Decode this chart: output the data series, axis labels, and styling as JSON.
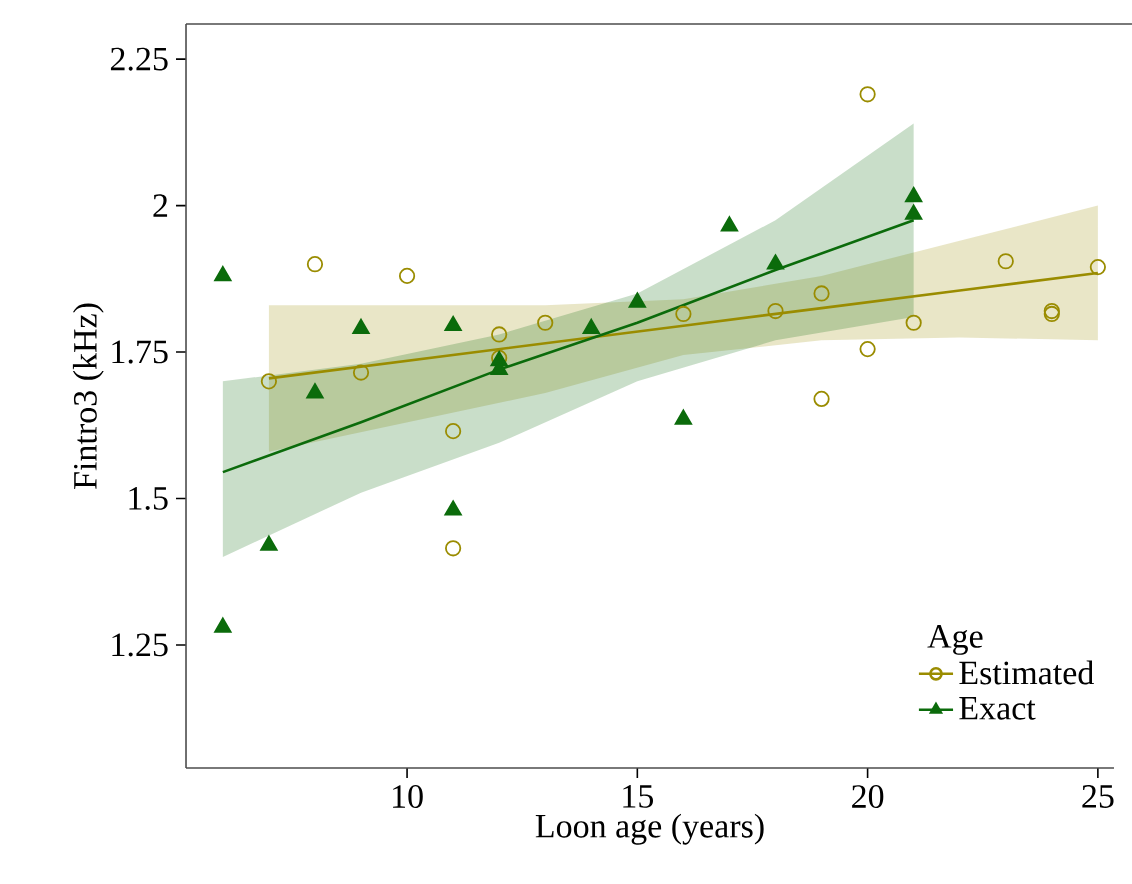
{
  "chart_data": {
    "type": "scatter",
    "xlabel": "Loon age (years)",
    "ylabel": "Fintro3 (kHz)",
    "legend_title": "Age",
    "legend": "bottom right",
    "grid": false,
    "xlim": [
      5.2,
      25.35
    ],
    "ylim": [
      1.04,
      2.31
    ],
    "xticks": [
      10,
      15,
      20,
      25
    ],
    "yticks": [
      1.25,
      1.5,
      1.75,
      2,
      2.25
    ],
    "series": [
      {
        "name": "Estimated",
        "marker": "circle",
        "color": "#9a8c00",
        "x": [
          7,
          8,
          9,
          10,
          11,
          11,
          12,
          12,
          13,
          16,
          18,
          19,
          19,
          20,
          20,
          21,
          23,
          24,
          24,
          25
        ],
        "values": [
          1.7,
          1.9,
          1.715,
          1.88,
          1.615,
          1.415,
          1.78,
          1.74,
          1.8,
          1.815,
          1.82,
          1.85,
          1.67,
          2.19,
          1.755,
          1.8,
          1.905,
          1.82,
          1.815,
          1.895
        ]
      },
      {
        "name": "Exact",
        "marker": "triangle",
        "color": "#0b6b0b",
        "x": [
          6,
          6,
          7,
          8,
          9,
          11,
          11,
          12,
          12,
          14,
          15,
          16,
          17,
          18,
          21,
          21
        ],
        "values": [
          1.88,
          1.28,
          1.42,
          1.68,
          1.79,
          1.795,
          1.48,
          1.735,
          1.72,
          1.79,
          1.835,
          1.635,
          1.965,
          1.9,
          2.015,
          1.985
        ]
      },
      {
        "type": "line",
        "color": "#9a8c00",
        "x": [
          7,
          10,
          13,
          16,
          19,
          22,
          25
        ],
        "values": [
          1.705,
          1.735,
          1.765,
          1.795,
          1.825,
          1.855,
          1.885
        ],
        "lower": [
          1.58,
          1.63,
          1.68,
          1.745,
          1.77,
          1.775,
          1.77
        ],
        "upper": [
          1.83,
          1.83,
          1.83,
          1.84,
          1.88,
          1.94,
          2.0
        ]
      },
      {
        "type": "line",
        "color": "#0b6b0b",
        "x": [
          6,
          9,
          12,
          15,
          18,
          21
        ],
        "values": [
          1.545,
          1.63,
          1.72,
          1.8,
          1.89,
          1.975
        ],
        "lower": [
          1.4,
          1.51,
          1.595,
          1.7,
          1.77,
          1.81
        ],
        "upper": [
          1.7,
          1.73,
          1.78,
          1.85,
          1.975,
          2.14
        ]
      }
    ]
  }
}
